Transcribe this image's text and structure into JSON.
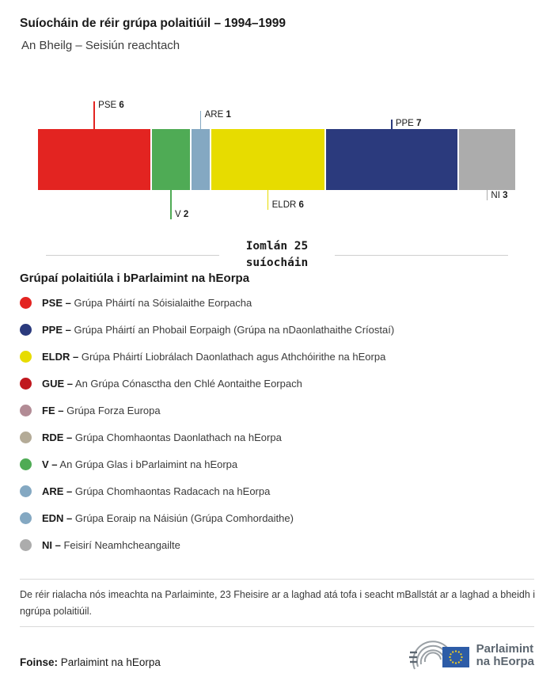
{
  "header": {
    "title": "Suíocháin de réir grúpa polaitiúil – 1994–1999",
    "subtitle": "An Bheilg – Seisiún reachtach"
  },
  "chart_data": {
    "type": "bar",
    "title": "Suíocháin de réir grúpa polaitiúil – 1994–1999",
    "subtitle": "An Bheilg – Seisiún reachtach",
    "total_seats": 25,
    "total_label_1": "Iomlán 25",
    "total_label_2": "suíocháin",
    "orientation": "horizontal-stacked",
    "segments": [
      {
        "group": "PSE",
        "seats": 6,
        "color": "#e32421",
        "callout": "above",
        "tick_len": 35
      },
      {
        "group": "V",
        "seats": 2,
        "color": "#4fab55",
        "callout": "below",
        "tick_len": 37
      },
      {
        "group": "ARE",
        "seats": 1,
        "color": "#84a8c2",
        "callout": "above",
        "tick_len": 23
      },
      {
        "group": "ELDR",
        "seats": 6,
        "color": "#e7dc00",
        "callout": "below",
        "tick_len": 25
      },
      {
        "group": "PPE",
        "seats": 7,
        "color": "#2b3a7d",
        "callout": "above",
        "tick_len": 12
      },
      {
        "group": "NI",
        "seats": 3,
        "color": "#acacac",
        "callout": "below",
        "tick_len": 13
      }
    ]
  },
  "legend": {
    "heading": "Grúpaí polaitiúla i bParlaimint na hEorpa",
    "separator": "–",
    "items": [
      {
        "code": "PSE",
        "name": "Grúpa Pháirtí na Sóisialaithe Eorpacha",
        "color": "#e32421"
      },
      {
        "code": "PPE",
        "name": "Grúpa Pháirtí an Phobail Eorpaigh (Grúpa na nDaonlathaithe Críostaí)",
        "color": "#2b3a7d"
      },
      {
        "code": "ELDR",
        "name": "Grúpa Pháirtí Liobrálach Daonlathach agus Athchóirithe na hEorpa",
        "color": "#e7dc00"
      },
      {
        "code": "GUE",
        "name": "An Grúpa Cónasctha den Chlé Aontaithe Eorpach",
        "color": "#c0181e"
      },
      {
        "code": "FE",
        "name": "Grúpa Forza Europa",
        "color": "#b28b95"
      },
      {
        "code": "RDE",
        "name": "Grúpa Chomhaontas Daonlathach na hEorpa",
        "color": "#b4ab97"
      },
      {
        "code": "V",
        "name": "An Grúpa Glas i bParlaimint na hEorpa",
        "color": "#4fab55"
      },
      {
        "code": "ARE",
        "name": "Grúpa Chomhaontas Radacach na hEorpa",
        "color": "#84a8c2"
      },
      {
        "code": "EDN",
        "name": "Grúpa Eoraip na Náisiún (Grúpa Comhordaithe)",
        "color": "#84a8c2"
      },
      {
        "code": "NI",
        "name": "Feisirí Neamhcheangailte",
        "color": "#acacac"
      }
    ]
  },
  "footnote": "De réir rialacha nós imeachta na Parlaiminte, 23 Fheisire ar a laghad atá tofa i seacht mBallstát ar a laghad a bheidh i ngrúpa polaitiúil.",
  "source": {
    "label": "Foinse:",
    "value": "Parlaimint na hEorpa"
  },
  "logo": {
    "line1": "Parlaimint",
    "line2": "na hEorpa"
  },
  "colors": {
    "flag_blue": "#2d5ca7",
    "flag_stars": "#ffd617",
    "logo_gray": "#9aa0a5",
    "logo_text": "#5c6670"
  }
}
